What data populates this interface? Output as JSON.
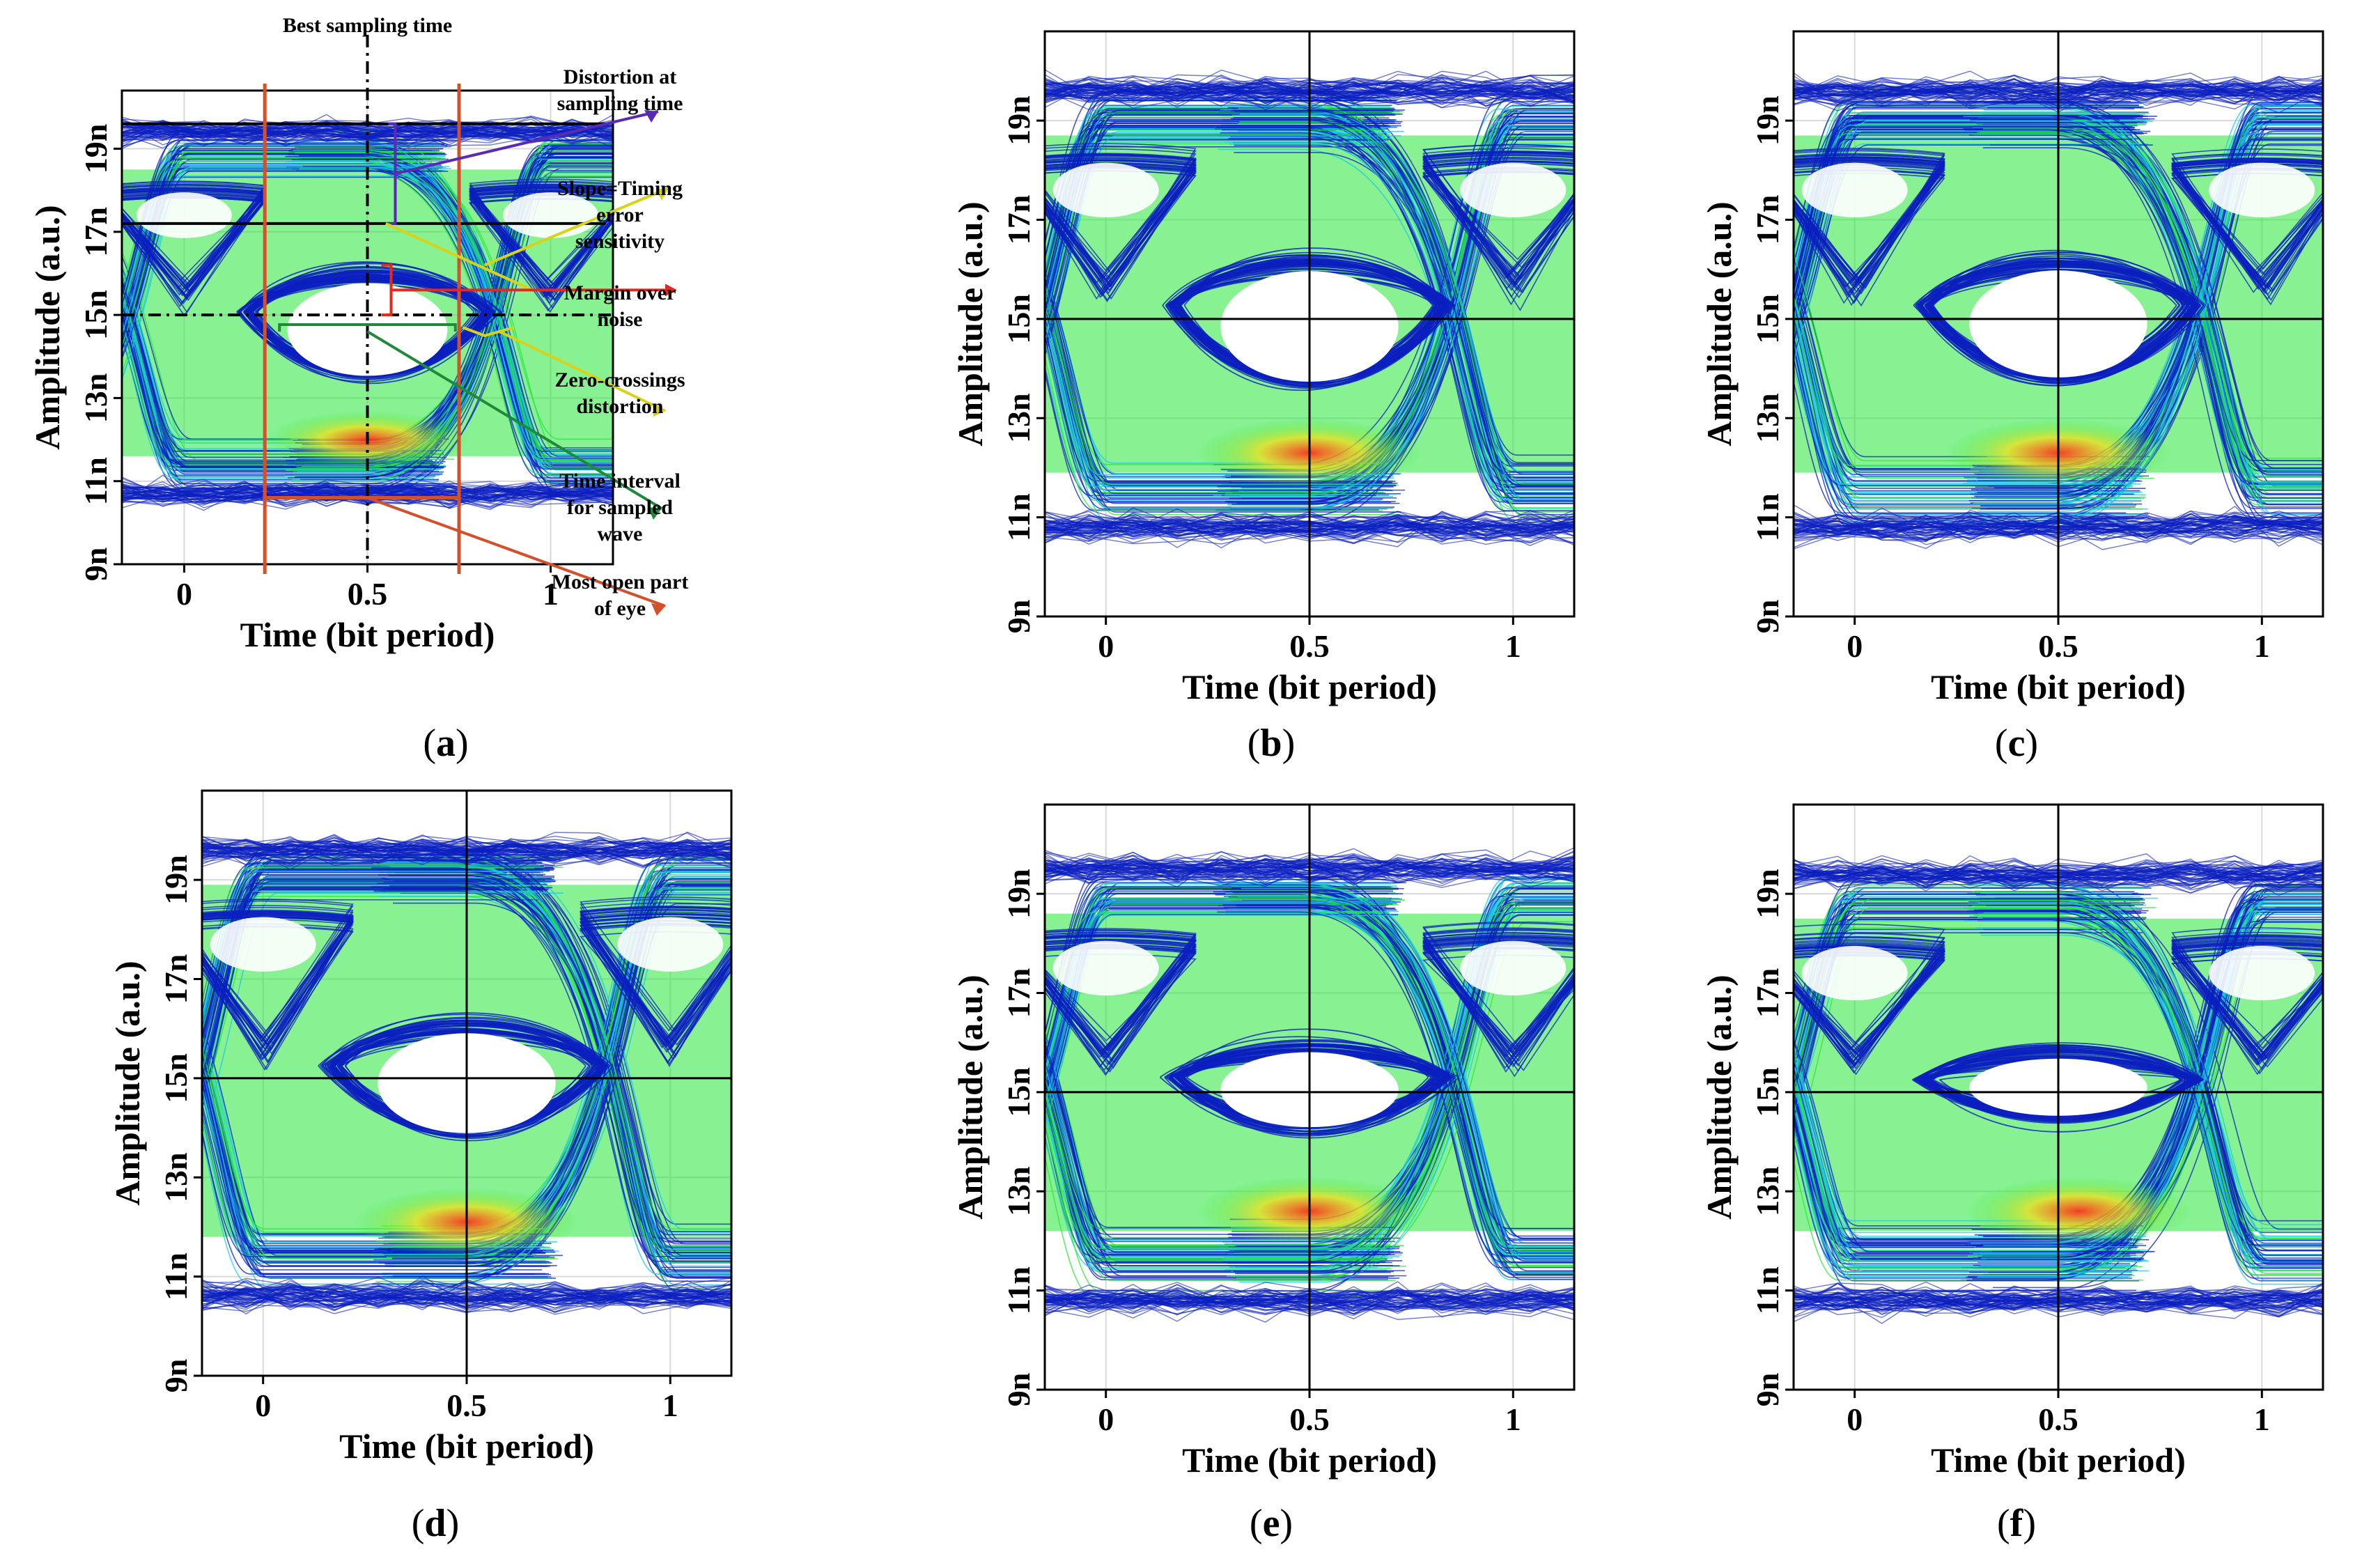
{
  "colors": {
    "trace_low": "#0b1fbf",
    "trace_mid": "#19c8e6",
    "trace_high": "#27e83a",
    "hot": "#ff2a1a",
    "hot_warm": "#f0e01c",
    "annot_purple": "#5a2ab4",
    "annot_yellow": "#d9d21a",
    "annot_red": "#e8261a",
    "annot_green": "#1e8a3a",
    "annot_orange": "#d2502a",
    "guide_black": "#000000"
  },
  "chart_data": [
    {
      "id": "a",
      "type": "eye-diagram",
      "caption": "(a)",
      "caption_letter": "a",
      "xlabel": "Time (bit period)",
      "ylabel": "Amplitude (a.u.)",
      "xlim": [
        -0.17,
        1.17
      ],
      "ylim": [
        9,
        20.4
      ],
      "xticks": [
        0,
        0.5,
        1
      ],
      "xtick_labels": [
        "0",
        "0.5",
        "1"
      ],
      "yticks": [
        9,
        11,
        13,
        15,
        17,
        19
      ],
      "ytick_labels": [
        "9n",
        "11n",
        "13n",
        "15n",
        "17n",
        "19n"
      ],
      "levels": [
        10.7,
        12.0,
        18.2,
        19.4
      ],
      "eye_open_level": 15.0,
      "eye_top": 16.2,
      "eye_bottom": 13.1,
      "hot_spot": {
        "x": 0.5,
        "y": 12.0
      },
      "annotations": {
        "best_sampling_time": "Best sampling time",
        "distortion": "Distortion at sampling time",
        "slope": "Slope=Timing error sensitivity",
        "margin": "Margin over noise",
        "zero_crossings": "Zero-crossings distortion",
        "time_interval": "Time interval for sampled wave",
        "most_open": "Most open part of eye"
      },
      "guide_levels": [
        19.6,
        17.2,
        15.0
      ],
      "sampling_time": 0.5,
      "interval": [
        0.22,
        0.75
      ]
    },
    {
      "id": "b",
      "type": "eye-diagram",
      "caption": "(b)",
      "caption_letter": "b",
      "xlabel": "Time (bit period)",
      "ylabel": "Amplitude (a.u.)",
      "xlim": [
        -0.15,
        1.15
      ],
      "ylim": [
        9,
        20.8
      ],
      "xticks": [
        0,
        0.5,
        1
      ],
      "xtick_labels": [
        "0",
        "0.5",
        "1"
      ],
      "yticks": [
        9,
        11,
        13,
        15,
        17,
        19
      ],
      "ytick_labels": [
        "9n",
        "11n",
        "13n",
        "15n",
        "17n",
        "19n"
      ],
      "levels": [
        10.8,
        12.3,
        18.4,
        19.6
      ],
      "eye_top": 16.4,
      "eye_bottom": 13.3,
      "hot_spot": {
        "x": 0.5,
        "y": 12.3
      }
    },
    {
      "id": "c",
      "type": "eye-diagram",
      "caption": "(c)",
      "caption_letter": "c",
      "xlabel": "Time (bit period)",
      "ylabel": "Amplitude (a.u.)",
      "xlim": [
        -0.15,
        1.15
      ],
      "ylim": [
        9,
        20.8
      ],
      "xticks": [
        0,
        0.5,
        1
      ],
      "xtick_labels": [
        "0",
        "0.5",
        "1"
      ],
      "yticks": [
        9,
        11,
        13,
        15,
        17,
        19
      ],
      "ytick_labels": [
        "9n",
        "11n",
        "13n",
        "15n",
        "17n",
        "19n"
      ],
      "levels": [
        10.8,
        12.3,
        18.4,
        19.6
      ],
      "eye_top": 16.4,
      "eye_bottom": 13.4,
      "hot_spot": {
        "x": 0.5,
        "y": 12.3
      }
    },
    {
      "id": "d",
      "type": "eye-diagram",
      "caption": "(d)",
      "caption_letter": "d",
      "xlabel": "Time (bit period)",
      "ylabel": "Amplitude (a.u.)",
      "xlim": [
        -0.15,
        1.15
      ],
      "ylim": [
        9,
        20.8
      ],
      "xticks": [
        0,
        0.5,
        1
      ],
      "xtick_labels": [
        "0",
        "0.5",
        "1"
      ],
      "yticks": [
        9,
        11,
        13,
        15,
        17,
        19
      ],
      "ytick_labels": [
        "9n",
        "11n",
        "13n",
        "15n",
        "17n",
        "19n"
      ],
      "levels": [
        10.6,
        12.2,
        18.6,
        19.6
      ],
      "eye_top": 16.3,
      "eye_bottom": 13.5,
      "hot_spot": {
        "x": 0.5,
        "y": 12.1
      }
    },
    {
      "id": "e",
      "type": "eye-diagram",
      "caption": "(e)",
      "caption_letter": "e",
      "xlabel": "Time (bit period)",
      "ylabel": "Amplitude (a.u.)",
      "xlim": [
        -0.15,
        1.15
      ],
      "ylim": [
        9,
        20.8
      ],
      "xticks": [
        0,
        0.5,
        1
      ],
      "xtick_labels": [
        "0",
        "0.5",
        "1"
      ],
      "yticks": [
        9,
        11,
        13,
        15,
        17,
        19
      ],
      "ytick_labels": [
        "9n",
        "11n",
        "13n",
        "15n",
        "17n",
        "19n"
      ],
      "levels": [
        10.8,
        12.6,
        18.3,
        19.5
      ],
      "eye_top": 16.1,
      "eye_bottom": 14.0,
      "hot_spot": {
        "x": 0.5,
        "y": 12.6
      }
    },
    {
      "id": "f",
      "type": "eye-diagram",
      "caption": "(f)",
      "caption_letter": "f",
      "xlabel": "Time (bit period)",
      "ylabel": "Amplitude (a.u.)",
      "xlim": [
        -0.15,
        1.15
      ],
      "ylim": [
        9,
        20.8
      ],
      "xticks": [
        0,
        0.5,
        1
      ],
      "xtick_labels": [
        "0",
        "0.5",
        "1"
      ],
      "yticks": [
        9,
        11,
        13,
        15,
        17,
        19
      ],
      "ytick_labels": [
        "9n",
        "11n",
        "13n",
        "15n",
        "17n",
        "19n"
      ],
      "levels": [
        10.8,
        12.6,
        18.2,
        19.4
      ],
      "eye_top": 15.9,
      "eye_bottom": 14.3,
      "hot_spot": {
        "x": 0.55,
        "y": 12.6
      }
    }
  ]
}
